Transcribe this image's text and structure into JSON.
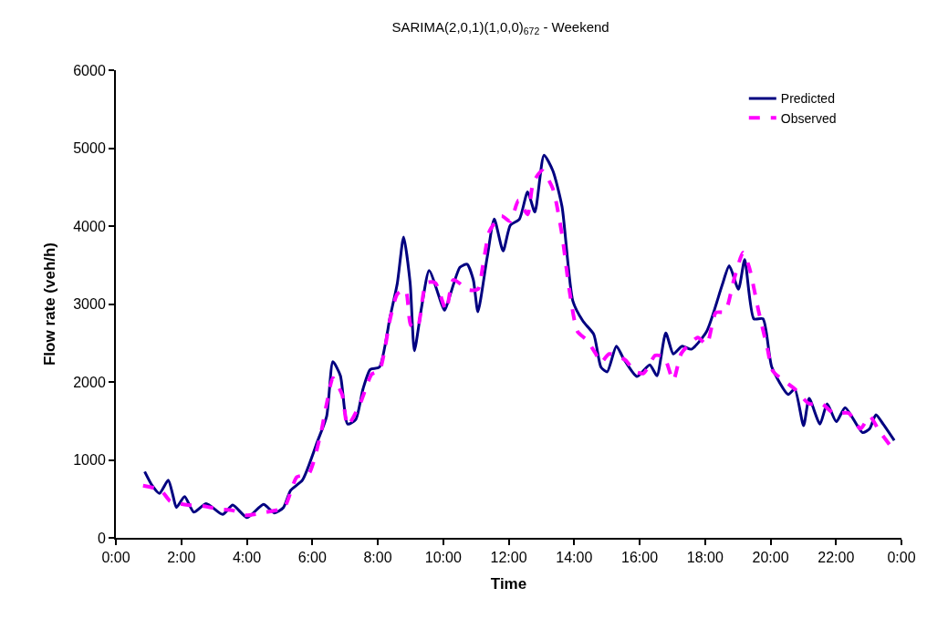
{
  "chart_data": {
    "type": "line",
    "title": "SARIMA(2,0,1)(1,0,0)$_{672}$ - Weekend",
    "xlabel": "Time",
    "ylabel": "Flow rate (veh/h)",
    "xlim": [
      0,
      24
    ],
    "xticks": [
      {
        "value": 0,
        "label": "0:00"
      },
      {
        "value": 2,
        "label": "2:00"
      },
      {
        "value": 4,
        "label": "4:00"
      },
      {
        "value": 6,
        "label": "6:00"
      },
      {
        "value": 8,
        "label": "8:00"
      },
      {
        "value": 10,
        "label": "10:00"
      },
      {
        "value": 12,
        "label": "12:00"
      },
      {
        "value": 14,
        "label": "14:00"
      },
      {
        "value": 16,
        "label": "16:00"
      },
      {
        "value": 18,
        "label": "18:00"
      },
      {
        "value": 20,
        "label": "20:00"
      },
      {
        "value": 22,
        "label": "22:00"
      },
      {
        "value": 24,
        "label": "0:00"
      }
    ],
    "ylim": [
      0,
      6000
    ],
    "yticks": [
      0,
      1000,
      2000,
      3000,
      4000,
      5000,
      6000
    ],
    "legend": "top right",
    "marker": "none",
    "series": [
      {
        "name": "Predicted",
        "color": "#000080",
        "line_style": "solid",
        "x": [
          0.88,
          1.11,
          1.33,
          1.6,
          1.74,
          1.85,
          2.1,
          2.38,
          2.76,
          3.26,
          3.57,
          4.01,
          4.51,
          4.84,
          5.12,
          5.34,
          5.7,
          6.17,
          6.44,
          6.63,
          6.86,
          7.08,
          7.33,
          7.55,
          7.77,
          8.05,
          8.38,
          8.6,
          8.79,
          8.99,
          9.12,
          9.34,
          9.57,
          9.95,
          10.04,
          10.51,
          10.73,
          10.92,
          11.06,
          11.34,
          11.56,
          11.83,
          12.05,
          12.33,
          12.58,
          12.8,
          13.08,
          13.35,
          13.63,
          13.96,
          14.27,
          14.6,
          14.82,
          15.01,
          15.29,
          15.51,
          15.92,
          16.31,
          16.53,
          16.8,
          17.03,
          17.3,
          17.58,
          18.05,
          18.52,
          18.74,
          19.02,
          19.21,
          19.49,
          19.77,
          20.04,
          20.54,
          20.74,
          21.01,
          21.18,
          21.51,
          21.73,
          22.01,
          22.28,
          22.81,
          23.03,
          23.22,
          23.44,
          23.78
        ],
        "values": [
          850,
          670,
          570,
          740,
          550,
          390,
          530,
          330,
          440,
          300,
          420,
          260,
          430,
          320,
          390,
          610,
          740,
          1250,
          1560,
          2260,
          2080,
          1460,
          1520,
          1910,
          2160,
          2190,
          2840,
          3270,
          3860,
          3270,
          2400,
          2960,
          3430,
          3000,
          2920,
          3470,
          3510,
          3310,
          2900,
          3590,
          4090,
          3680,
          4010,
          4090,
          4440,
          4180,
          4910,
          4710,
          4250,
          3040,
          2780,
          2610,
          2190,
          2130,
          2460,
          2300,
          2070,
          2220,
          2080,
          2630,
          2360,
          2460,
          2420,
          2650,
          3240,
          3490,
          3190,
          3570,
          2810,
          2810,
          2190,
          1840,
          1910,
          1440,
          1790,
          1460,
          1720,
          1490,
          1670,
          1350,
          1400,
          1580,
          1460,
          1250
        ]
      },
      {
        "name": "Observed",
        "color": "#ff00ff",
        "line_style": "dashed",
        "x": [
          0.83,
          1.38,
          1.66,
          2.21,
          2.65,
          3.12,
          3.59,
          3.95,
          4.59,
          5.14,
          5.53,
          5.89,
          6.25,
          6.44,
          6.63,
          6.91,
          7.08,
          7.46,
          7.82,
          8.05,
          8.18,
          8.38,
          8.6,
          8.85,
          9.01,
          9.21,
          9.48,
          9.76,
          10.09,
          10.31,
          10.78,
          11.06,
          11.22,
          11.42,
          11.78,
          12.05,
          12.3,
          12.58,
          12.75,
          13.02,
          13.35,
          13.63,
          13.85,
          14.1,
          14.38,
          14.65,
          14.82,
          15.07,
          15.57,
          15.84,
          16.12,
          16.48,
          16.75,
          17.03,
          17.28,
          17.78,
          18.05,
          18.33,
          18.61,
          18.88,
          19.16,
          19.35,
          19.63,
          19.91,
          20.07,
          20.74,
          21.18,
          21.57,
          21.92,
          22.39,
          22.75,
          23.03,
          23.31,
          23.72
        ],
        "values": [
          670,
          610,
          470,
          420,
          410,
          370,
          350,
          290,
          330,
          390,
          780,
          820,
          1320,
          1720,
          2050,
          1840,
          1440,
          1720,
          2100,
          2140,
          2340,
          2810,
          3130,
          3180,
          2730,
          2690,
          3270,
          3270,
          2920,
          3310,
          3180,
          3190,
          3510,
          3940,
          4130,
          4060,
          4330,
          4150,
          4560,
          4710,
          4480,
          3890,
          3190,
          2650,
          2540,
          2370,
          2250,
          2360,
          2280,
          2140,
          2110,
          2340,
          2320,
          2020,
          2370,
          2570,
          2480,
          2890,
          2900,
          3310,
          3660,
          3470,
          2920,
          2420,
          2140,
          1910,
          1720,
          1720,
          1600,
          1600,
          1400,
          1560,
          1380,
          1150
        ]
      }
    ]
  }
}
